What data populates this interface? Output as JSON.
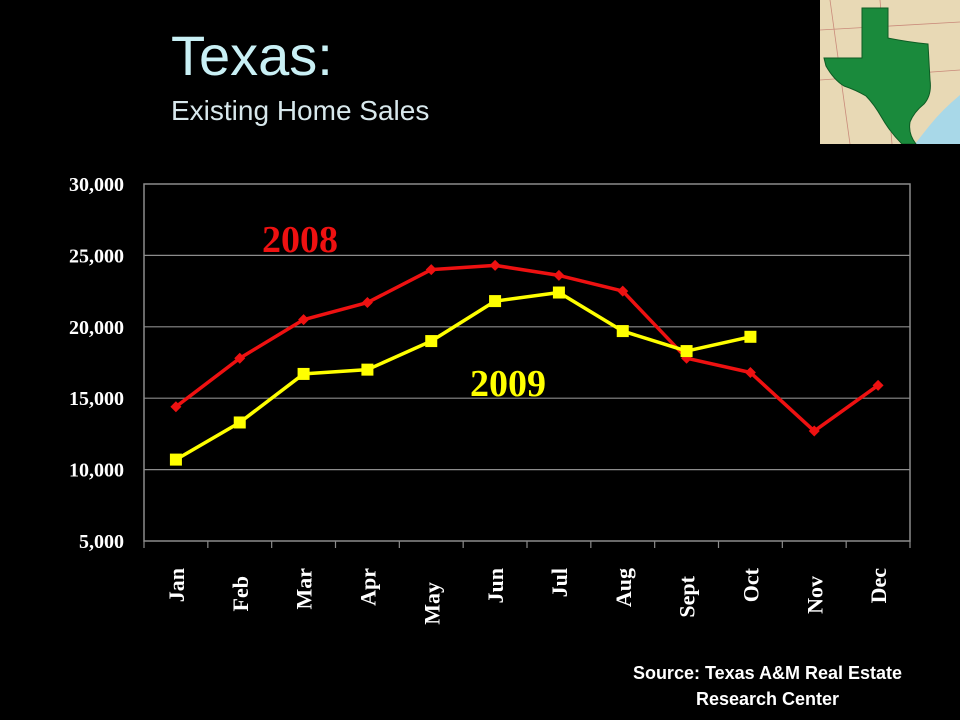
{
  "slide": {
    "title": "Texas:",
    "subtitle": "Existing Home Sales",
    "source_line1": "Source: Texas A&M Real Estate",
    "source_line2": "Research Center"
  },
  "map": {
    "land_color": "#1a8a3c",
    "water_color": "#a8d8e8",
    "paper_color": "#e8d9b5"
  },
  "chart_data": {
    "type": "line",
    "categories": [
      "Jan",
      "Feb",
      "Mar",
      "Apr",
      "May",
      "Jun",
      "Jul",
      "Aug",
      "Sept",
      "Oct",
      "Nov",
      "Dec"
    ],
    "series": [
      {
        "name": "2008",
        "color": "#ee1111",
        "marker": "diamond",
        "values": [
          14400,
          17800,
          20500,
          21700,
          24000,
          24300,
          23600,
          22500,
          17800,
          16800,
          12700,
          15900
        ]
      },
      {
        "name": "2009",
        "color": "#ffff00",
        "marker": "square",
        "values": [
          10700,
          13300,
          16700,
          17000,
          19000,
          21800,
          22400,
          19700,
          18300,
          19300,
          null,
          null
        ]
      }
    ],
    "ylim": [
      5000,
      30000
    ],
    "yticks": [
      "5,000",
      "10,000",
      "15,000",
      "20,000",
      "25,000",
      "30,000"
    ],
    "ytick_values": [
      5000,
      10000,
      15000,
      20000,
      25000,
      30000
    ],
    "grid": true,
    "legend": "inline labels"
  }
}
